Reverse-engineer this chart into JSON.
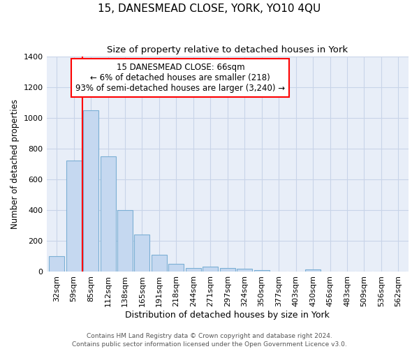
{
  "title": "15, DANESMEAD CLOSE, YORK, YO10 4QU",
  "subtitle": "Size of property relative to detached houses in York",
  "xlabel": "Distribution of detached houses by size in York",
  "ylabel": "Number of detached properties",
  "categories": [
    "32sqm",
    "59sqm",
    "85sqm",
    "112sqm",
    "138sqm",
    "165sqm",
    "191sqm",
    "218sqm",
    "244sqm",
    "271sqm",
    "297sqm",
    "324sqm",
    "350sqm",
    "377sqm",
    "403sqm",
    "430sqm",
    "456sqm",
    "483sqm",
    "509sqm",
    "536sqm",
    "562sqm"
  ],
  "values": [
    100,
    720,
    1050,
    750,
    400,
    240,
    110,
    48,
    22,
    30,
    22,
    18,
    10,
    0,
    0,
    12,
    0,
    0,
    0,
    0,
    0
  ],
  "bar_color": "#c5d8f0",
  "bar_edge_color": "#7bafd4",
  "background_color": "#ffffff",
  "plot_bg_color": "#e8eef8",
  "grid_color": "#c8d4e8",
  "annotation_box_text": "15 DANESMEAD CLOSE: 66sqm\n← 6% of detached houses are smaller (218)\n93% of semi-detached houses are larger (3,240) →",
  "red_line_x": 1.5,
  "ylim": [
    0,
    1400
  ],
  "yticks": [
    0,
    200,
    400,
    600,
    800,
    1000,
    1200,
    1400
  ],
  "footer_text": "Contains HM Land Registry data © Crown copyright and database right 2024.\nContains public sector information licensed under the Open Government Licence v3.0.",
  "title_fontsize": 11,
  "subtitle_fontsize": 9.5,
  "xlabel_fontsize": 9,
  "ylabel_fontsize": 8.5,
  "tick_fontsize": 8,
  "annotation_fontsize": 8.5,
  "footer_fontsize": 6.5
}
